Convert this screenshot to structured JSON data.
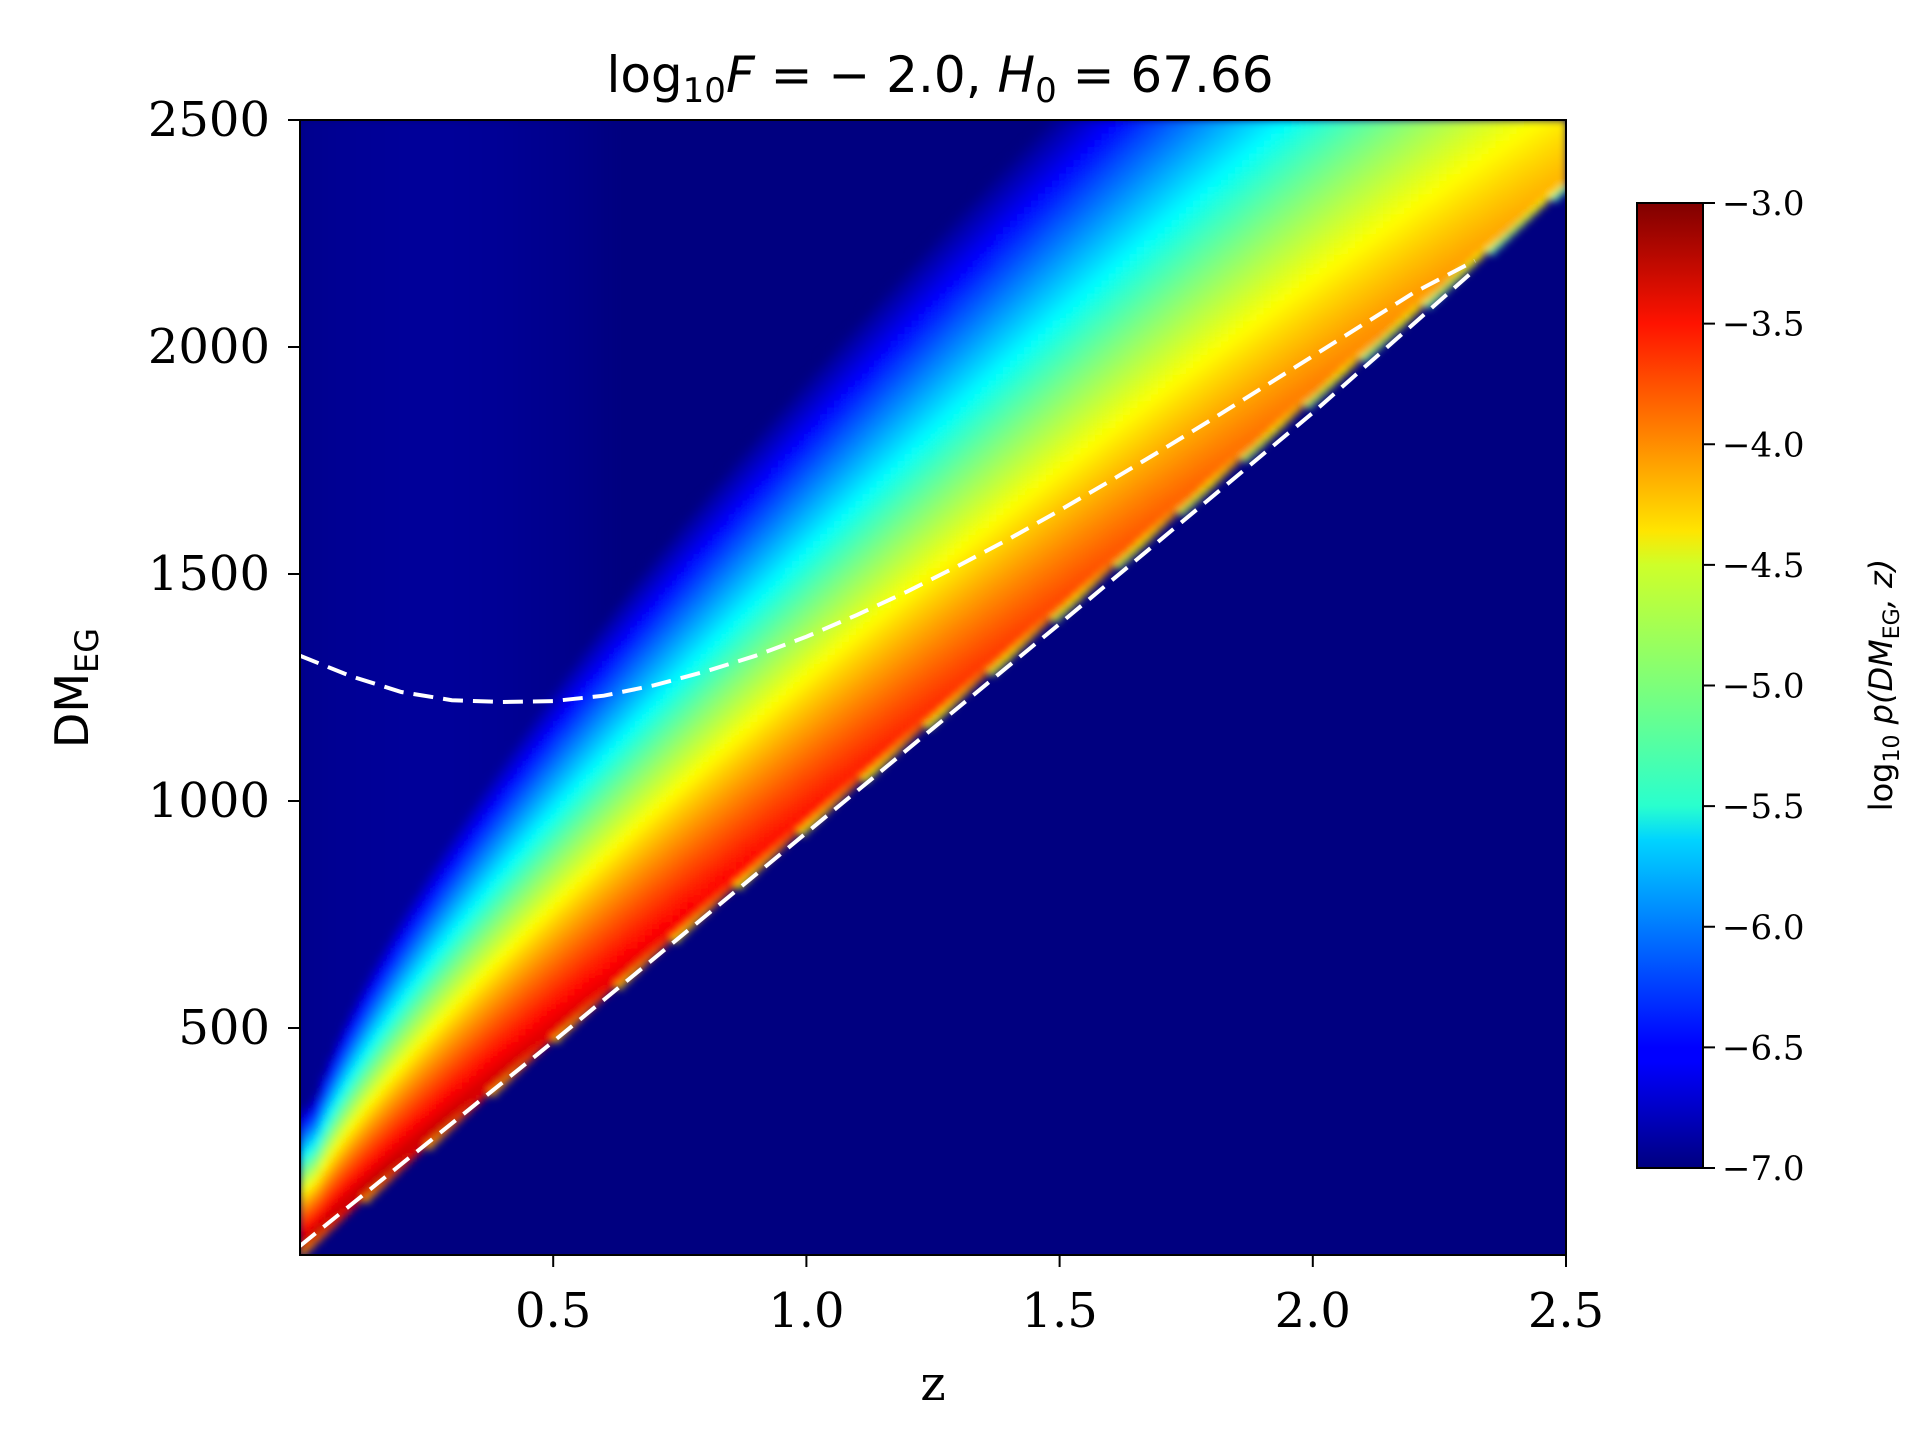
{
  "chart_data": {
    "type": "heatmap",
    "title": {
      "lhs_base": "log",
      "lhs_sub": "10",
      "lhs_var": "F",
      "lhs_value": " = − 2.0, ",
      "rhs_var": "H",
      "rhs_sub": "0",
      "rhs_value": " = 67.66"
    },
    "xlabel": "z",
    "ylabel": {
      "base": "DM",
      "sub": "EG"
    },
    "xlim": [
      0.0,
      2.5
    ],
    "ylim": [
      0,
      2500
    ],
    "x_ticks": [
      0.5,
      1.0,
      1.5,
      2.0,
      2.5
    ],
    "x_tick_labels": [
      "0.5",
      "1.0",
      "1.5",
      "2.0",
      "2.5"
    ],
    "y_ticks": [
      500,
      1000,
      1500,
      2000,
      2500
    ],
    "y_tick_labels": [
      "500",
      "1000",
      "1500",
      "2000",
      "2500"
    ],
    "grid": false,
    "colormap": "jet",
    "colorbar": {
      "label": {
        "prefix": "log",
        "prefix_sub": "10",
        "p": " p(",
        "dm": "DM",
        "dm_sub": "EG",
        "rest": ", z)"
      },
      "range": [
        -7.0,
        -3.0
      ],
      "ticks": [
        -3.0,
        -3.5,
        -4.0,
        -4.5,
        -5.0,
        -5.5,
        -6.0,
        -6.5,
        -7.0
      ],
      "tick_labels": [
        "−3.0",
        "−3.5",
        "−4.0",
        "−4.5",
        "−5.0",
        "−5.5",
        "−6.0",
        "−6.5",
        "−7.0"
      ]
    },
    "lower_boundary_dm_per_z": 940,
    "upper_contour": {
      "style": "dashed",
      "color": "#ffffff",
      "points": [
        [
          0.0,
          1320
        ],
        [
          0.1,
          1275
        ],
        [
          0.2,
          1240
        ],
        [
          0.3,
          1222
        ],
        [
          0.4,
          1218
        ],
        [
          0.5,
          1220
        ],
        [
          0.6,
          1232
        ],
        [
          0.7,
          1255
        ],
        [
          0.8,
          1285
        ],
        [
          0.9,
          1320
        ],
        [
          1.0,
          1362
        ],
        [
          1.1,
          1410
        ],
        [
          1.2,
          1462
        ],
        [
          1.3,
          1518
        ],
        [
          1.4,
          1577
        ],
        [
          1.5,
          1640
        ],
        [
          1.6,
          1705
        ],
        [
          1.7,
          1772
        ],
        [
          1.8,
          1840
        ],
        [
          1.9,
          1910
        ],
        [
          2.0,
          1980
        ],
        [
          2.1,
          2050
        ],
        [
          2.2,
          2120
        ],
        [
          2.32,
          2190
        ]
      ]
    },
    "lower_contour": {
      "style": "dashed",
      "color": "#ffffff",
      "points": [
        [
          0.0,
          20
        ],
        [
          0.5,
          470
        ],
        [
          1.0,
          930
        ],
        [
          1.5,
          1390
        ],
        [
          2.0,
          1855
        ],
        [
          2.32,
          2170
        ]
      ]
    }
  }
}
